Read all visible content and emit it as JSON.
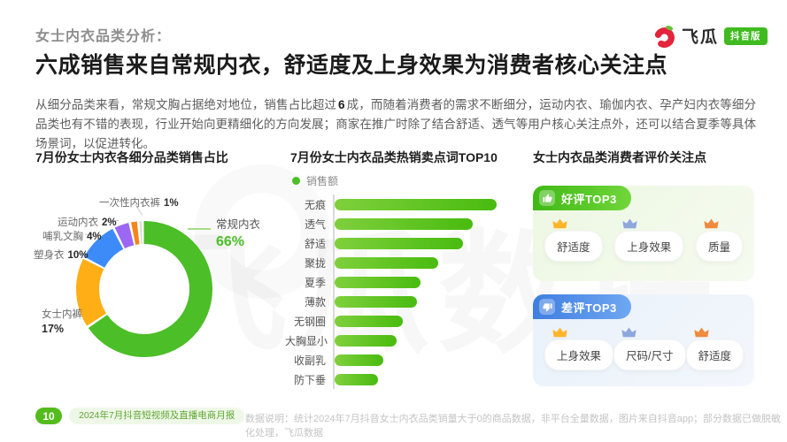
{
  "page": {
    "subtitle": "女士内衣品类分析：",
    "headline": "六成销售来自常规内衣，舒适度及上身效果为消费者核心关注点",
    "intro": [
      "从细分品类来看，常规文胸占据绝对地位，销售占比超过",
      "6",
      "成，而随着消费者的需求不断细分，运动内衣、瑜伽内衣、孕产妇内衣等细分品类也有不错的表现，行业开始向更精细化的方向发展；商家在推广时除了结合舒适、透气等用户核心关注点外，还可以结合夏季等具体场景词，以促进转化。"
    ],
    "watermark": "飞瓜数据"
  },
  "logo": {
    "brand": "飞瓜",
    "badge": "抖音版"
  },
  "sections": {
    "donut_title": "7月份女士内衣各细分品类销售占比",
    "bars_title": "7月份女士内衣品类热销卖点词TOP10",
    "reviews_title": "女士内衣品类消费者评价关注点"
  },
  "chart_data": [
    {
      "type": "pie",
      "donut": true,
      "title": "7月份女士内衣各细分品类销售占比",
      "labels": [
        "常规内衣",
        "女士内裤",
        "塑身衣",
        "哺乳文胸",
        "运动内衣",
        "一次性内衣裤"
      ],
      "values": [
        66,
        17,
        10,
        4,
        2,
        1
      ],
      "value_labels": [
        "66%",
        "17%",
        "10%",
        "4%",
        "2%",
        "1%"
      ],
      "unit": "percent of sales",
      "colors": [
        "#4CBE28",
        "#FFAE16",
        "#3D8BF8",
        "#9C67F2",
        "#F5861C",
        "#D7DBD4"
      ],
      "legend_position": "around-labels"
    },
    {
      "type": "bar",
      "orientation": "horizontal",
      "title": "7月份女士内衣品类热销卖点词TOP10",
      "series_name": "销售额",
      "categories": [
        "无痕",
        "透气",
        "舒适",
        "聚拢",
        "夏季",
        "薄款",
        "无钢圈",
        "大胸显小",
        "收副乳",
        "防下垂"
      ],
      "values": [
        100,
        85,
        79,
        64,
        53,
        51,
        42,
        38,
        30,
        27
      ],
      "value_note": "relative sales index estimated from bar lengths; no data labels shown",
      "bar_color": "#5BC524",
      "grid": false
    }
  ],
  "reviews": {
    "positive": {
      "label": "好评TOP3",
      "items": [
        "舒适度",
        "上身效果",
        "质量"
      ]
    },
    "negative": {
      "label": "差评TOP3",
      "items": [
        "上身效果",
        "尺码/尺寸",
        "舒适度"
      ]
    },
    "crown_colors": [
      "#FFB42A",
      "#8EA8DE",
      "#F08B3E"
    ]
  },
  "footer": {
    "page_number": "10",
    "report_name": "2024年7月抖音短视频及直播电商月报",
    "note": "数据说明：统计2024年7月抖音女士内衣品类销量大于0的商品数据，非平台全量数据，图片来自抖音app；部分数据已做脱敏化处理，飞瓜数据"
  },
  "colors": {
    "brand_green": "#4CBE28",
    "positive_ribbon_green": "#3FB915",
    "negative_ribbon_blue": "#3E7EE0",
    "badge_green": "#3FBB20"
  }
}
